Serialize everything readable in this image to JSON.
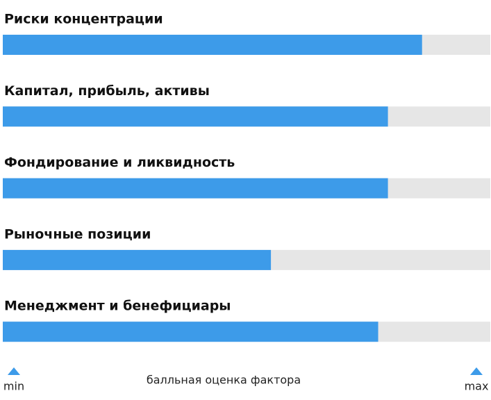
{
  "chart_data": {
    "type": "bar",
    "orientation": "horizontal",
    "categories": [
      "Риски концентрации",
      "Капитал, прибыль, активы",
      "Фондирование и ликвидность",
      "Рыночные позиции",
      "Менеджмент и бенефициары"
    ],
    "values": [
      86,
      79,
      79,
      55,
      77
    ],
    "color": "#3d9be9",
    "track_color": "#e6e6e6",
    "xlim": [
      0,
      100
    ],
    "xticks": [
      {
        "value": 0,
        "label": "min"
      },
      {
        "value": 100,
        "label": "max"
      }
    ],
    "xlabel": "балльная оценка фактора"
  }
}
